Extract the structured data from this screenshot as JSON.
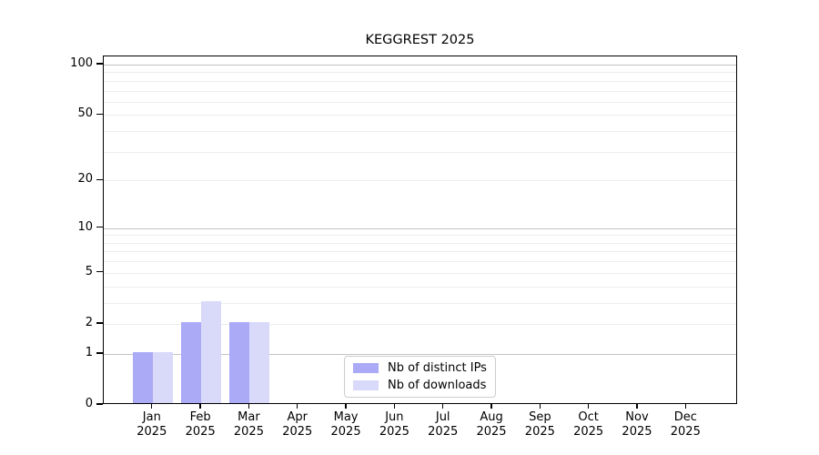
{
  "chart_data": {
    "type": "bar",
    "title": "KEGGREST 2025",
    "categories": [
      "Jan 2025",
      "Feb 2025",
      "Mar 2025",
      "Apr 2025",
      "May 2025",
      "Jun 2025",
      "Jul 2025",
      "Aug 2025",
      "Sep 2025",
      "Oct 2025",
      "Nov 2025",
      "Dec 2025"
    ],
    "series": [
      {
        "name": "Nb of distinct IPs",
        "color": "#abaaf7",
        "values": [
          1,
          2,
          2,
          0,
          0,
          0,
          0,
          0,
          0,
          0,
          0,
          0
        ]
      },
      {
        "name": "Nb of downloads",
        "color": "#d9d9fa",
        "values": [
          1,
          3,
          2,
          0,
          0,
          0,
          0,
          0,
          0,
          0,
          0,
          0
        ]
      }
    ],
    "xlabel": "",
    "ylabel": "",
    "y_scale": "log1p",
    "y_ticks": [
      100,
      50,
      20,
      10,
      5,
      2,
      1,
      0
    ],
    "y_major_gridlines": [
      1,
      10,
      100
    ],
    "y_minor_gridlines": [
      2,
      3,
      4,
      5,
      6,
      7,
      8,
      9,
      20,
      30,
      40,
      50,
      60,
      70,
      80,
      90
    ],
    "ylim": [
      0,
      112
    ],
    "grid": true,
    "legend_position": "lower center",
    "colors": {
      "axis": "#000000",
      "text": "#000000",
      "grid_major": "#c3c3c3",
      "grid_minor": "#ededed",
      "legend_border": "#cccccc"
    }
  }
}
